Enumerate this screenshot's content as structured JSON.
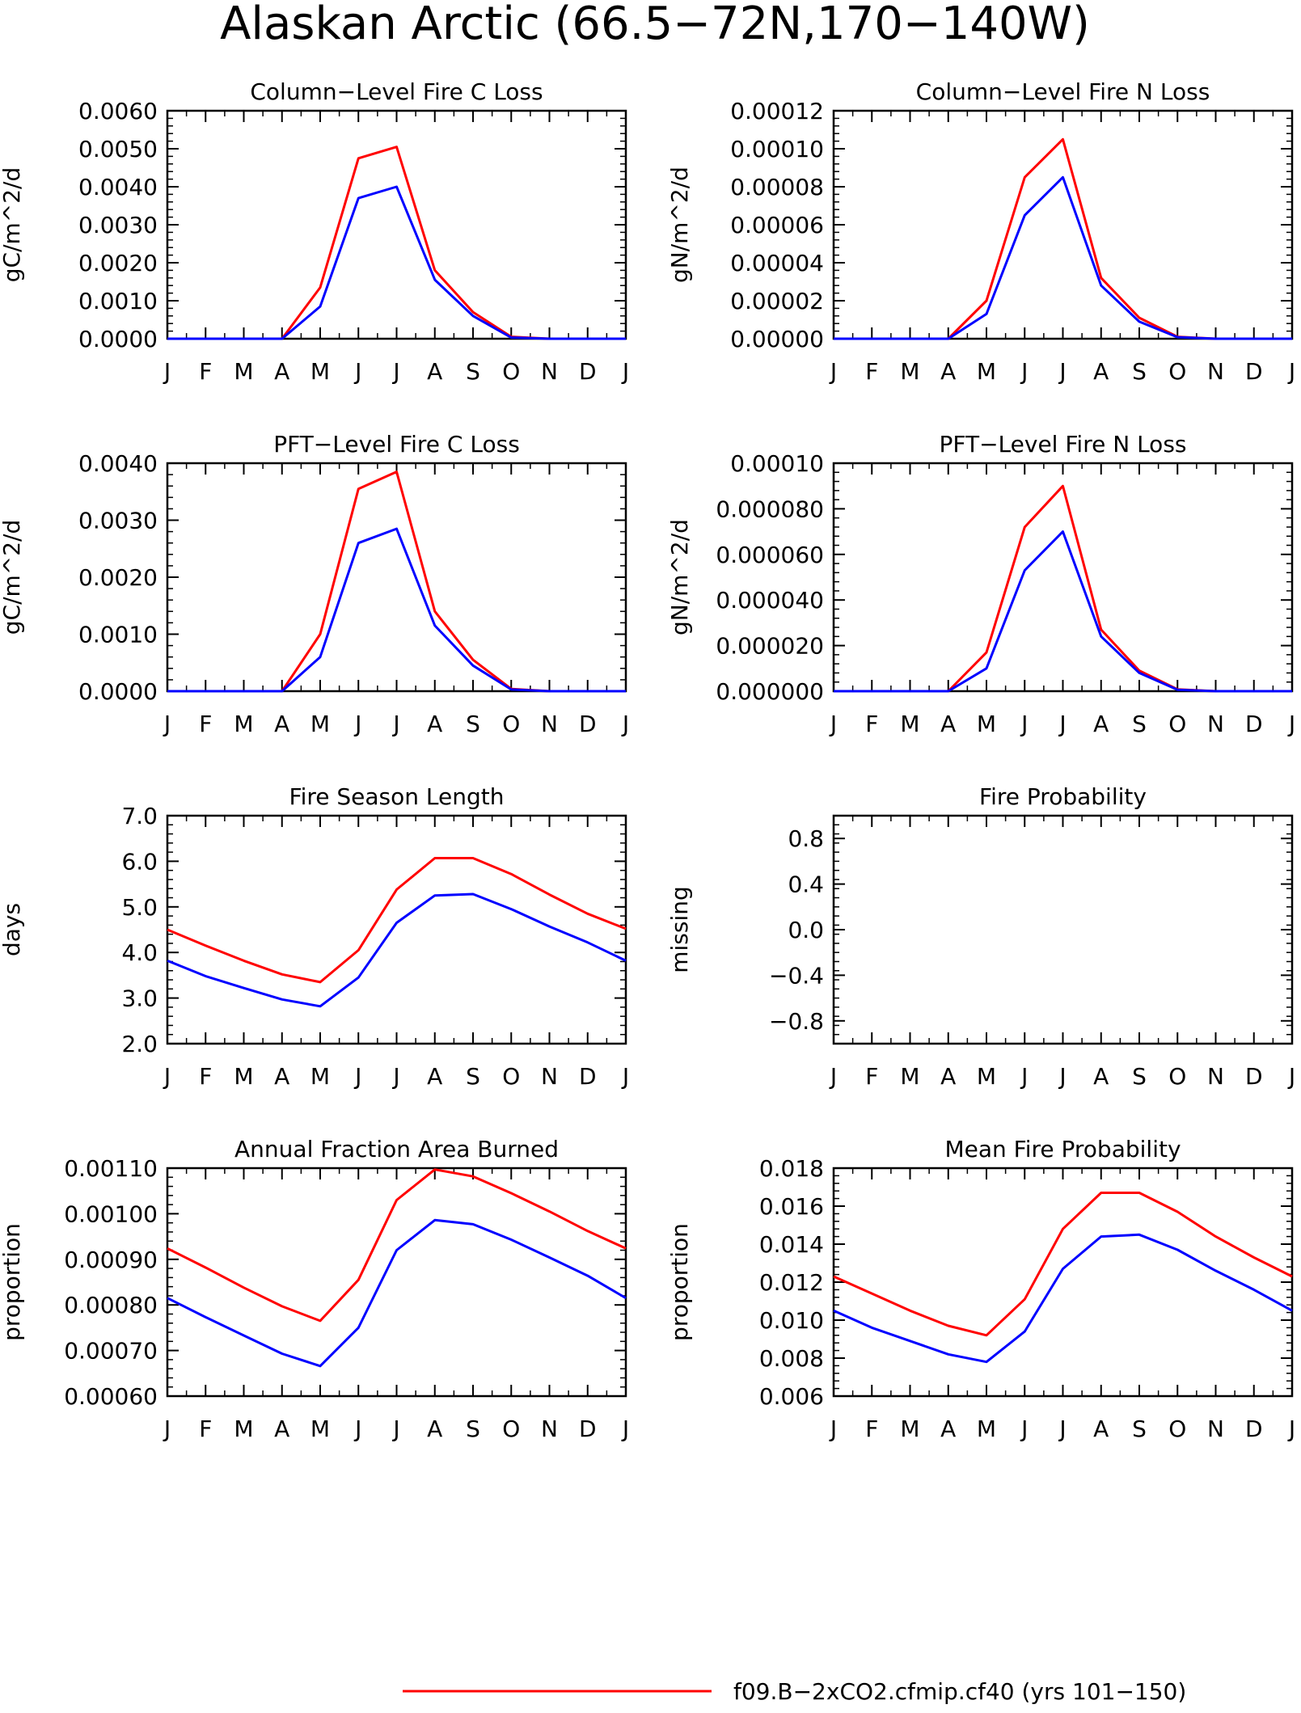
{
  "figure": {
    "title": "Alaskan Arctic (66.5−72N,170−140W)",
    "legend": {
      "entries": [
        {
          "label": "f09.B−2xCO2.cfmip.cf40 (yrs 101−150)",
          "color": "#ff0000"
        }
      ]
    }
  },
  "chart_data": [
    {
      "type": "line",
      "title": "Column−Level Fire C Loss",
      "ylabel": "gC/m^2/d",
      "x": [
        "J",
        "F",
        "M",
        "A",
        "M",
        "J",
        "J",
        "A",
        "S",
        "O",
        "N",
        "D",
        "J"
      ],
      "ylim": [
        0,
        0.006
      ],
      "yticks": [
        "0.0000",
        "0.0010",
        "0.0020",
        "0.0030",
        "0.0040",
        "0.0050",
        "0.0060"
      ],
      "series": [
        {
          "color": "#ff0000",
          "values": [
            0,
            0,
            0,
            0,
            0.00135,
            0.00475,
            0.00505,
            0.0018,
            0.0007,
            5e-05,
            0,
            0,
            0
          ]
        },
        {
          "color": "#0000ff",
          "values": [
            0,
            0,
            0,
            0,
            0.00085,
            0.0037,
            0.004,
            0.00155,
            0.0006,
            3e-05,
            0,
            0,
            0
          ]
        }
      ]
    },
    {
      "type": "line",
      "title": "Column−Level Fire N Loss",
      "ylabel": "gN/m^2/d",
      "x": [
        "J",
        "F",
        "M",
        "A",
        "M",
        "J",
        "J",
        "A",
        "S",
        "O",
        "N",
        "D",
        "J"
      ],
      "ylim": [
        0,
        0.00012
      ],
      "yticks": [
        "0.00000",
        "0.00002",
        "0.00004",
        "0.00006",
        "0.00008",
        "0.00010",
        "0.00012"
      ],
      "series": [
        {
          "color": "#ff0000",
          "values": [
            0,
            0,
            0,
            0,
            2e-05,
            8.5e-05,
            0.000105,
            3.2e-05,
            1.1e-05,
            1e-06,
            0,
            0,
            0
          ]
        },
        {
          "color": "#0000ff",
          "values": [
            0,
            0,
            0,
            0,
            1.3e-05,
            6.5e-05,
            8.5e-05,
            2.8e-05,
            9e-06,
            8e-07,
            0,
            0,
            0
          ]
        }
      ]
    },
    {
      "type": "line",
      "title": "PFT−Level Fire C Loss",
      "ylabel": "gC/m^2/d",
      "x": [
        "J",
        "F",
        "M",
        "A",
        "M",
        "J",
        "J",
        "A",
        "S",
        "O",
        "N",
        "D",
        "J"
      ],
      "ylim": [
        0,
        0.004
      ],
      "yticks": [
        "0.0000",
        "0.0010",
        "0.0020",
        "0.0030",
        "0.0040"
      ],
      "series": [
        {
          "color": "#ff0000",
          "values": [
            0,
            0,
            0,
            0,
            0.001,
            0.00355,
            0.00385,
            0.0014,
            0.00055,
            4e-05,
            0,
            0,
            0
          ]
        },
        {
          "color": "#0000ff",
          "values": [
            0,
            0,
            0,
            0,
            0.0006,
            0.0026,
            0.00285,
            0.00115,
            0.00045,
            3e-05,
            0,
            0,
            0
          ]
        }
      ]
    },
    {
      "type": "line",
      "title": "PFT−Level Fire N Loss",
      "ylabel": "gN/m^2/d",
      "x": [
        "J",
        "F",
        "M",
        "A",
        "M",
        "J",
        "J",
        "A",
        "S",
        "O",
        "N",
        "D",
        "J"
      ],
      "ylim": [
        0,
        0.0001
      ],
      "yticks": [
        "0.000000",
        "0.000020",
        "0.000040",
        "0.000060",
        "0.000080",
        "0.00010"
      ],
      "series": [
        {
          "color": "#ff0000",
          "values": [
            0,
            0,
            0,
            0,
            1.7e-05,
            7.2e-05,
            9e-05,
            2.7e-05,
            9e-06,
            8e-07,
            0,
            0,
            0
          ]
        },
        {
          "color": "#0000ff",
          "values": [
            0,
            0,
            0,
            0,
            1e-05,
            5.3e-05,
            7e-05,
            2.4e-05,
            8e-06,
            6e-07,
            0,
            0,
            0
          ]
        }
      ]
    },
    {
      "type": "line",
      "title": "Fire Season Length",
      "ylabel": "days",
      "x": [
        "J",
        "F",
        "M",
        "A",
        "M",
        "J",
        "J",
        "A",
        "S",
        "O",
        "N",
        "D",
        "J"
      ],
      "ylim": [
        2,
        7
      ],
      "yticks": [
        "2.0",
        "3.0",
        "4.0",
        "5.0",
        "6.0",
        "7.0"
      ],
      "series": [
        {
          "color": "#ff0000",
          "values": [
            4.5,
            4.15,
            3.82,
            3.52,
            3.35,
            4.05,
            5.38,
            6.07,
            6.07,
            5.72,
            5.27,
            4.85,
            4.52
          ]
        },
        {
          "color": "#0000ff",
          "values": [
            3.82,
            3.48,
            3.22,
            2.97,
            2.82,
            3.45,
            4.65,
            5.25,
            5.28,
            4.95,
            4.57,
            4.22,
            3.82
          ]
        }
      ]
    },
    {
      "type": "line",
      "title": "Fire Probability",
      "ylabel": "missing",
      "x": [
        "J",
        "F",
        "M",
        "A",
        "M",
        "J",
        "J",
        "A",
        "S",
        "O",
        "N",
        "D",
        "J"
      ],
      "ylim": [
        -1,
        1
      ],
      "yticks": [
        "−0.8",
        "−0.4",
        "0.0",
        "0.4",
        "0.8"
      ],
      "series": []
    },
    {
      "type": "line",
      "title": "Annual Fraction Area Burned",
      "ylabel": "proportion",
      "x": [
        "J",
        "F",
        "M",
        "A",
        "M",
        "J",
        "J",
        "A",
        "S",
        "O",
        "N",
        "D",
        "J"
      ],
      "ylim": [
        0.0006,
        0.0011
      ],
      "yticks": [
        "0.00060",
        "0.00070",
        "0.00080",
        "0.00090",
        "0.00100",
        "0.00110"
      ],
      "series": [
        {
          "color": "#ff0000",
          "values": [
            0.000924,
            0.000882,
            0.000838,
            0.000797,
            0.000765,
            0.000855,
            0.00103,
            0.001097,
            0.001082,
            0.001045,
            0.001005,
            0.000962,
            0.000924
          ]
        },
        {
          "color": "#0000ff",
          "values": [
            0.000815,
            0.000773,
            0.000733,
            0.000693,
            0.000666,
            0.00075,
            0.00092,
            0.000986,
            0.000977,
            0.000943,
            0.000904,
            0.000864,
            0.000815
          ]
        }
      ]
    },
    {
      "type": "line",
      "title": "Mean Fire Probability",
      "ylabel": "proportion",
      "x": [
        "J",
        "F",
        "M",
        "A",
        "M",
        "J",
        "J",
        "A",
        "S",
        "O",
        "N",
        "D",
        "J"
      ],
      "ylim": [
        0.006,
        0.018
      ],
      "yticks": [
        "0.006",
        "0.008",
        "0.010",
        "0.012",
        "0.014",
        "0.016",
        "0.018"
      ],
      "series": [
        {
          "color": "#ff0000",
          "values": [
            0.0123,
            0.0114,
            0.0105,
            0.0097,
            0.0092,
            0.0111,
            0.0148,
            0.0167,
            0.0167,
            0.0157,
            0.0144,
            0.0133,
            0.0123
          ]
        },
        {
          "color": "#0000ff",
          "values": [
            0.0105,
            0.0096,
            0.0089,
            0.0082,
            0.0078,
            0.0094,
            0.0127,
            0.0144,
            0.0145,
            0.0137,
            0.0126,
            0.0116,
            0.0105
          ]
        }
      ]
    }
  ]
}
